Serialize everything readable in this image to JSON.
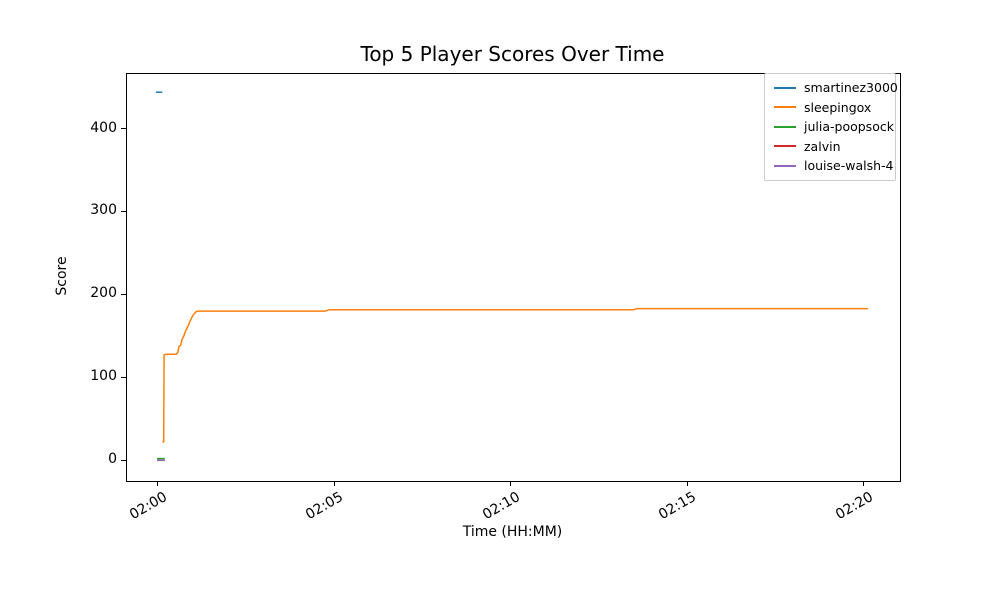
{
  "figure": {
    "background": "#ffffff",
    "spine_color": "#000000",
    "legend_border_color": "#cccccc"
  },
  "chart_data": {
    "type": "line",
    "title": "Top 5 Player Scores Over Time",
    "xlabel": "Time (HH:MM)",
    "ylabel": "Score",
    "x_unit": "minutes since 02:00",
    "xlim": [
      -0.9,
      21.0
    ],
    "ylim": [
      -24,
      467
    ],
    "grid": false,
    "legend_position": "upper right",
    "xticks": [
      {
        "t": 0,
        "label": "02:00"
      },
      {
        "t": 5,
        "label": "02:05"
      },
      {
        "t": 10,
        "label": "02:10"
      },
      {
        "t": 15,
        "label": "02:15"
      },
      {
        "t": 20,
        "label": "02:20"
      }
    ],
    "yticks": [
      {
        "v": 0,
        "label": "0"
      },
      {
        "v": 100,
        "label": "100"
      },
      {
        "v": 200,
        "label": "200"
      },
      {
        "v": 300,
        "label": "300"
      },
      {
        "v": 400,
        "label": "400"
      }
    ],
    "series": [
      {
        "name": "smartinez3000",
        "color": "#1f77b4",
        "points": [
          [
            -0.08,
            445
          ],
          [
            0.1,
            445
          ]
        ]
      },
      {
        "name": "sleepingox",
        "color": "#ff7f0e",
        "points": [
          [
            0.1,
            23
          ],
          [
            0.14,
            23
          ],
          [
            0.15,
            128
          ],
          [
            0.22,
            129
          ],
          [
            0.5,
            129
          ],
          [
            0.54,
            131
          ],
          [
            0.57,
            138
          ],
          [
            0.62,
            140
          ],
          [
            0.66,
            147
          ],
          [
            0.7,
            150
          ],
          [
            0.76,
            157
          ],
          [
            0.83,
            163
          ],
          [
            0.9,
            170
          ],
          [
            0.97,
            176
          ],
          [
            1.05,
            180
          ],
          [
            1.1,
            181
          ],
          [
            4.72,
            181
          ],
          [
            4.82,
            182.5
          ],
          [
            13.45,
            182.5
          ],
          [
            13.55,
            184
          ],
          [
            20.1,
            184
          ]
        ]
      },
      {
        "name": "julia-poopsock",
        "color": "#2ca02c",
        "points": [
          [
            -0.05,
            3
          ],
          [
            0.17,
            3
          ]
        ]
      },
      {
        "name": "zalvin",
        "color": "#d62728",
        "points": [
          [
            -0.05,
            1
          ],
          [
            0.17,
            1
          ]
        ]
      },
      {
        "name": "louise-walsh-4",
        "color": "#9467bd",
        "points": [
          [
            -0.05,
            1
          ],
          [
            0.17,
            1
          ]
        ]
      }
    ]
  }
}
